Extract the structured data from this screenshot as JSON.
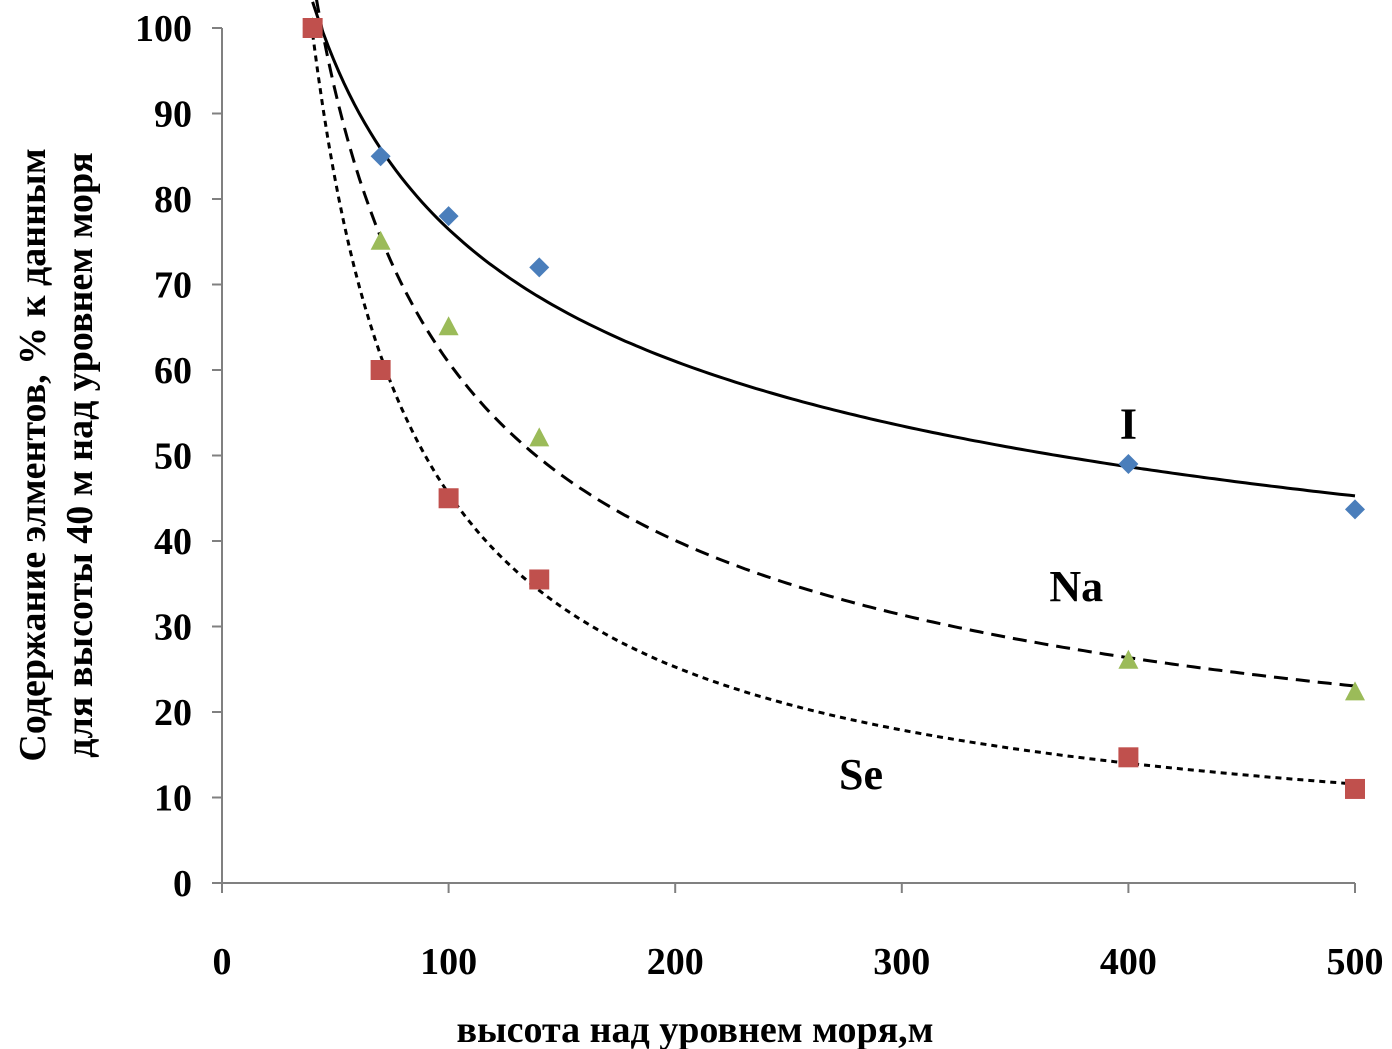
{
  "chart_data": {
    "type": "scatter",
    "title": "",
    "xlabel": "высота над уровнем моря,м",
    "ylabel_lines": [
      "Содержание элментов,  % к данным",
      "для высоты  40 м над уровнем моря"
    ],
    "xlim": [
      0,
      500
    ],
    "ylim": [
      0,
      100
    ],
    "x_ticks": [
      0,
      100,
      200,
      300,
      400,
      500
    ],
    "x_tick_labels": [
      "0",
      "100",
      "200",
      "300",
      "400",
      "500"
    ],
    "y_ticks": [
      0,
      10,
      20,
      30,
      40,
      50,
      60,
      70,
      80,
      90,
      100
    ],
    "y_tick_labels": [
      "0",
      "10",
      "20",
      "30",
      "40",
      "50",
      "60",
      "70",
      "80",
      "90",
      "100"
    ],
    "grid": false,
    "legend": "none",
    "series": [
      {
        "name": "I",
        "marker": "diamond",
        "color": "#4a7ebb",
        "trendline": "solid",
        "x": [
          40,
          70,
          100,
          140,
          400,
          500
        ],
        "y": [
          100,
          85,
          78,
          72,
          49,
          43.7
        ]
      },
      {
        "name": "Na",
        "marker": "triangle",
        "color": "#9bbb59",
        "trendline": "dashed",
        "x": [
          40,
          70,
          100,
          140,
          400,
          500
        ],
        "y": [
          100,
          75,
          65,
          52,
          26,
          22.3
        ]
      },
      {
        "name": "Se",
        "marker": "square",
        "color": "#c0504d",
        "trendline": "dotted",
        "x": [
          40,
          70,
          100,
          140,
          400,
          500
        ],
        "y": [
          100,
          60,
          45,
          35.5,
          14.7,
          11
        ]
      }
    ]
  }
}
